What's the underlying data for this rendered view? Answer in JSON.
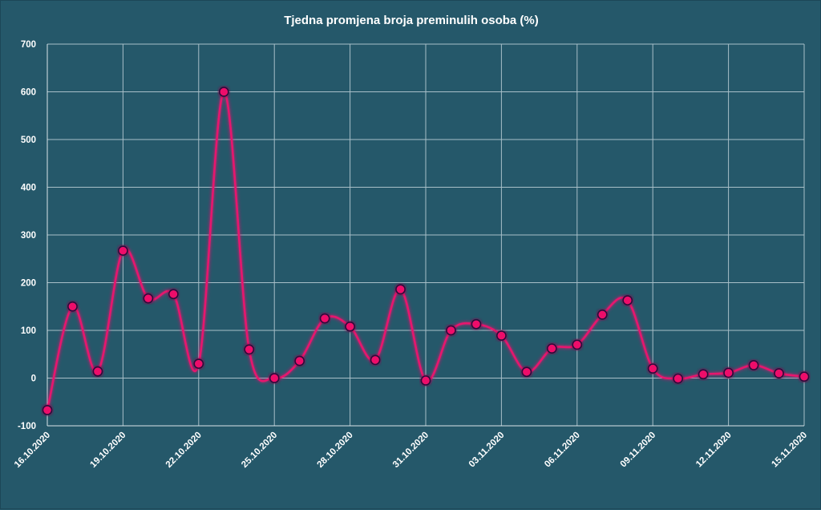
{
  "chart_data": {
    "type": "line",
    "title": "Tjedna promjena broja preminulih osoba (%)",
    "xlabel": "",
    "ylabel": "",
    "ylim": [
      -100,
      700
    ],
    "yticks": [
      "-100",
      "0",
      "100",
      "200",
      "300",
      "400",
      "500",
      "600",
      "700"
    ],
    "x_tick_labels": [
      "16.10.2020",
      "19.10.2020",
      "22.10.2020",
      "25.10.2020",
      "28.10.2020",
      "31.10.2020",
      "03.11.2020",
      "06.11.2020",
      "09.11.2020",
      "12.11.2020",
      "15.11.2020"
    ],
    "x": [
      "16.10.2020",
      "17.10.2020",
      "18.10.2020",
      "19.10.2020",
      "20.10.2020",
      "21.10.2020",
      "22.10.2020",
      "23.10.2020",
      "24.10.2020",
      "25.10.2020",
      "26.10.2020",
      "27.10.2020",
      "28.10.2020",
      "29.10.2020",
      "30.10.2020",
      "31.10.2020",
      "01.11.2020",
      "02.11.2020",
      "03.11.2020",
      "04.11.2020",
      "05.11.2020",
      "06.11.2020",
      "07.11.2020",
      "08.11.2020",
      "09.11.2020",
      "10.11.2020",
      "11.11.2020",
      "12.11.2020",
      "13.11.2020",
      "14.11.2020",
      "15.11.2020"
    ],
    "series": [
      {
        "values": [
          -67,
          150,
          14,
          267,
          167,
          176,
          30,
          600,
          60,
          0,
          36,
          125,
          108,
          38,
          186,
          -5,
          100,
          113,
          89,
          13,
          62,
          70,
          133,
          163,
          20,
          -1,
          8,
          11,
          27,
          10,
          3
        ]
      }
    ],
    "grid": true,
    "colors": {
      "line": "#e6146e",
      "marker_fill": "#ee0f6a",
      "marker_edge": "#2a0a3a",
      "background": "#25586a",
      "grid": "#a8bfc8"
    }
  }
}
